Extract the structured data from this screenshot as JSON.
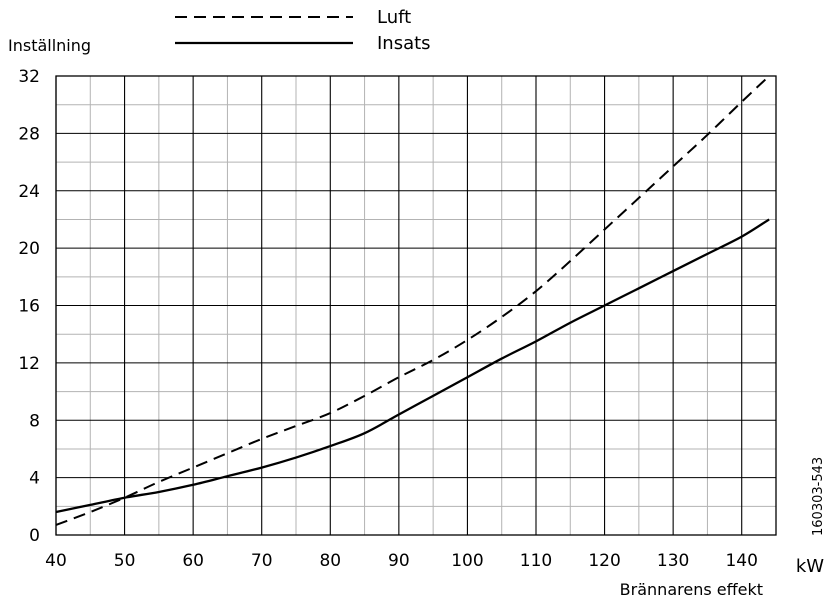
{
  "chart_data": {
    "type": "line",
    "ylabel": "Inställning",
    "xlabel": "Brännarens effekt",
    "x_unit": "kW",
    "figure_code": "160303-543",
    "xlim": [
      40,
      145
    ],
    "ylim": [
      0,
      32
    ],
    "x_ticks": [
      40,
      50,
      60,
      70,
      80,
      90,
      100,
      110,
      120,
      130,
      140
    ],
    "y_ticks": [
      0,
      4,
      8,
      12,
      16,
      20,
      24,
      28,
      32
    ],
    "x_minor_step": 5,
    "y_minor_step": 2,
    "grid": true,
    "legend_position": "top",
    "series": [
      {
        "name": "Luft",
        "style": "dashed",
        "x": [
          40,
          45,
          50,
          55,
          60,
          65,
          70,
          75,
          80,
          85,
          90,
          95,
          100,
          105,
          110,
          115,
          120,
          125,
          130,
          135,
          140,
          144
        ],
        "y": [
          0.7,
          1.6,
          2.6,
          3.7,
          4.7,
          5.7,
          6.7,
          7.6,
          8.5,
          9.7,
          11.0,
          12.2,
          13.6,
          15.2,
          17.0,
          19.1,
          21.3,
          23.5,
          25.7,
          27.9,
          30.2,
          32.0
        ]
      },
      {
        "name": "Insats",
        "style": "solid",
        "x": [
          40,
          45,
          50,
          55,
          60,
          65,
          70,
          75,
          80,
          85,
          90,
          95,
          100,
          105,
          110,
          115,
          120,
          125,
          130,
          135,
          140,
          144
        ],
        "y": [
          1.6,
          2.1,
          2.6,
          3.0,
          3.5,
          4.1,
          4.7,
          5.4,
          6.2,
          7.1,
          8.4,
          9.7,
          11.0,
          12.3,
          13.5,
          14.8,
          16.0,
          17.2,
          18.4,
          19.6,
          20.8,
          22.0
        ]
      }
    ]
  }
}
